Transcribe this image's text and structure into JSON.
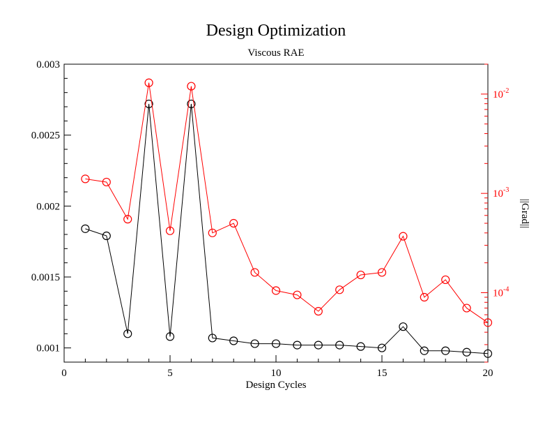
{
  "chart_data": {
    "type": "line",
    "title": "Design Optimization",
    "subtitle": "Viscous RAE",
    "xlabel": "Design Cycles",
    "ylabel": "",
    "y2label": "||Grad||",
    "xlim": [
      0,
      20
    ],
    "ylim": [
      0.0009,
      0.003
    ],
    "y2lim": [
      2e-05,
      0.02
    ],
    "y2scale": "log",
    "grid": false,
    "legend": "none",
    "x_ticks": [
      "0",
      "5",
      "10",
      "15",
      "20"
    ],
    "y_ticks": [
      "0.001",
      "0.0015",
      "0.002",
      "0.0025",
      "0.003"
    ],
    "y2_ticks": [
      {
        "value": 0.0001,
        "base": "10",
        "exp": "-4"
      },
      {
        "value": 0.001,
        "base": "10",
        "exp": "-3"
      },
      {
        "value": 0.01,
        "base": "10",
        "exp": "-2"
      }
    ],
    "colors": {
      "series1": "#000000",
      "series2": "#ff0000"
    },
    "series": [
      {
        "axis": "left",
        "color": "#000000",
        "x": [
          1,
          2,
          3,
          4,
          5,
          6,
          7,
          8,
          9,
          10,
          11,
          12,
          13,
          14,
          15,
          16,
          17,
          18,
          19,
          20
        ],
        "values": [
          0.00184,
          0.00179,
          0.0011,
          0.00272,
          0.00108,
          0.00272,
          0.00107,
          0.00105,
          0.00103,
          0.00103,
          0.00102,
          0.00102,
          0.00102,
          0.00101,
          0.001,
          0.00115,
          0.00098,
          0.00098,
          0.00097,
          0.00096
        ]
      },
      {
        "axis": "right",
        "color": "#ff0000",
        "x": [
          1,
          2,
          3,
          4,
          5,
          6,
          7,
          8,
          9,
          10,
          11,
          12,
          13,
          14,
          15,
          16,
          17,
          18,
          19,
          20
        ],
        "values": [
          0.0014,
          0.0013,
          0.00055,
          0.013,
          0.00042,
          0.012,
          0.0004,
          0.0005,
          0.00016,
          0.000105,
          9.5e-05,
          6.5e-05,
          0.000107,
          0.000151,
          0.00016,
          0.00037,
          9e-05,
          0.000135,
          7e-05,
          5e-05
        ]
      }
    ]
  }
}
